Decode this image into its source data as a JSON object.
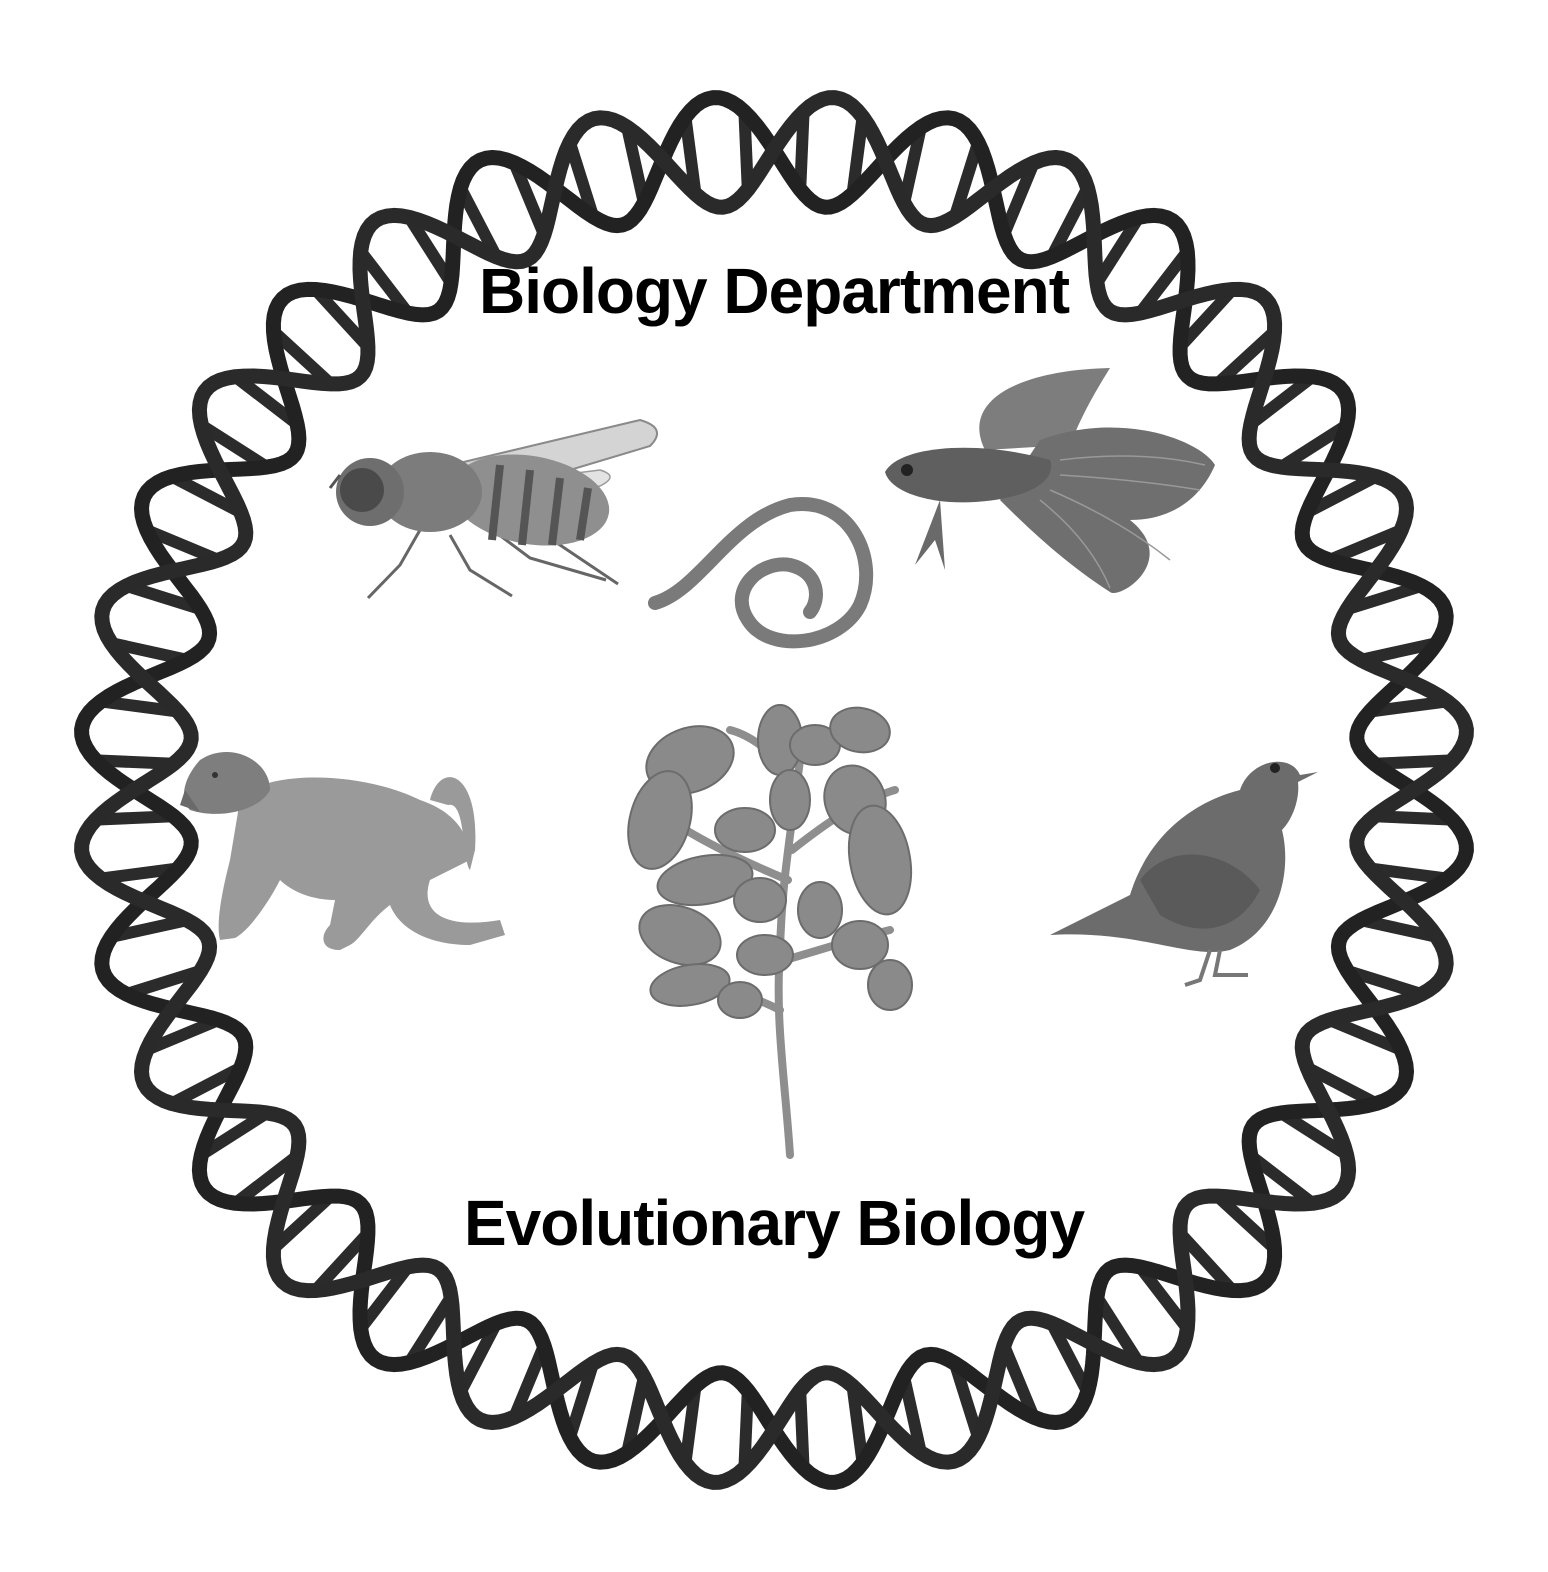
{
  "logo": {
    "title": "Biology Department",
    "subtitle": "Evolutionary Biology"
  },
  "illustrations": [
    "fruit-fly-icon",
    "nematode-worm-icon",
    "betta-fish-icon",
    "monkey-icon",
    "tomato-plant-icon",
    "blackbird-icon"
  ],
  "colors": {
    "background": "#ffffff",
    "helix_backbone": "#222222",
    "helix_rungs": "#2b2b2b",
    "text": "#000000"
  }
}
